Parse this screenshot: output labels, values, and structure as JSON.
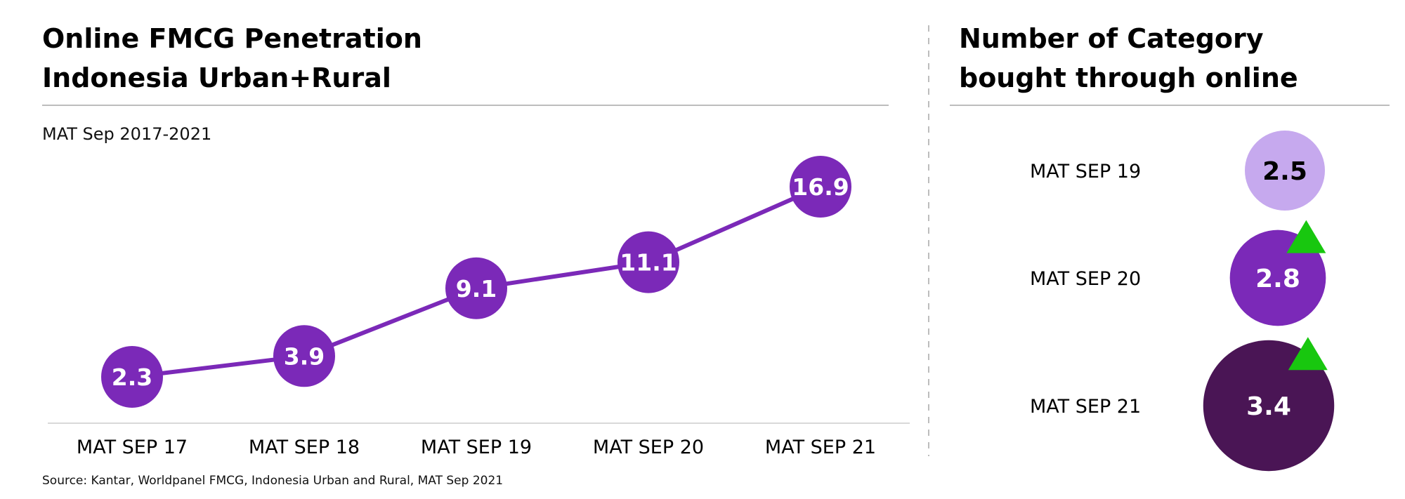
{
  "left_panel": {
    "title_line1": "Online FMCG Penetration",
    "title_line2": "Indonesia Urban+Rural",
    "subtitle": "MAT Sep 2017-2021"
  },
  "right_panel": {
    "title_line1": "Number of Category",
    "title_line2": "bought through online"
  },
  "source": "Source: Kantar, Worldpanel FMCG, Indonesia Urban and Rural, MAT Sep 2021",
  "colors": {
    "line_purple": "#7b29b8",
    "light_purple": "#c6a9ee",
    "dark_purple": "#4a1555",
    "up_arrow_green": "#18c70f",
    "rule_gray": "#bdbdbd"
  },
  "chart_data": [
    {
      "type": "line",
      "categories": [
        "MAT SEP 17",
        "MAT SEP 18",
        "MAT SEP 19",
        "MAT SEP 20",
        "MAT SEP 21"
      ],
      "values": [
        2.3,
        3.9,
        9.1,
        11.1,
        16.9
      ],
      "labels": [
        "2.3",
        "3.9",
        "9.1",
        "11.1",
        "16.9"
      ],
      "title": "Online FMCG Penetration Indonesia Urban+Rural",
      "subtitle": "MAT Sep 2017-2021",
      "ylim": [
        0,
        20
      ],
      "grid": false
    },
    {
      "type": "bubble",
      "categories": [
        "MAT SEP 19",
        "MAT SEP 20",
        "MAT SEP 21"
      ],
      "values": [
        2.5,
        2.8,
        3.4
      ],
      "labels": [
        "2.5",
        "2.8",
        "3.4"
      ],
      "trend": [
        "none",
        "up",
        "up"
      ],
      "title": "Number of Category bought through online"
    }
  ]
}
